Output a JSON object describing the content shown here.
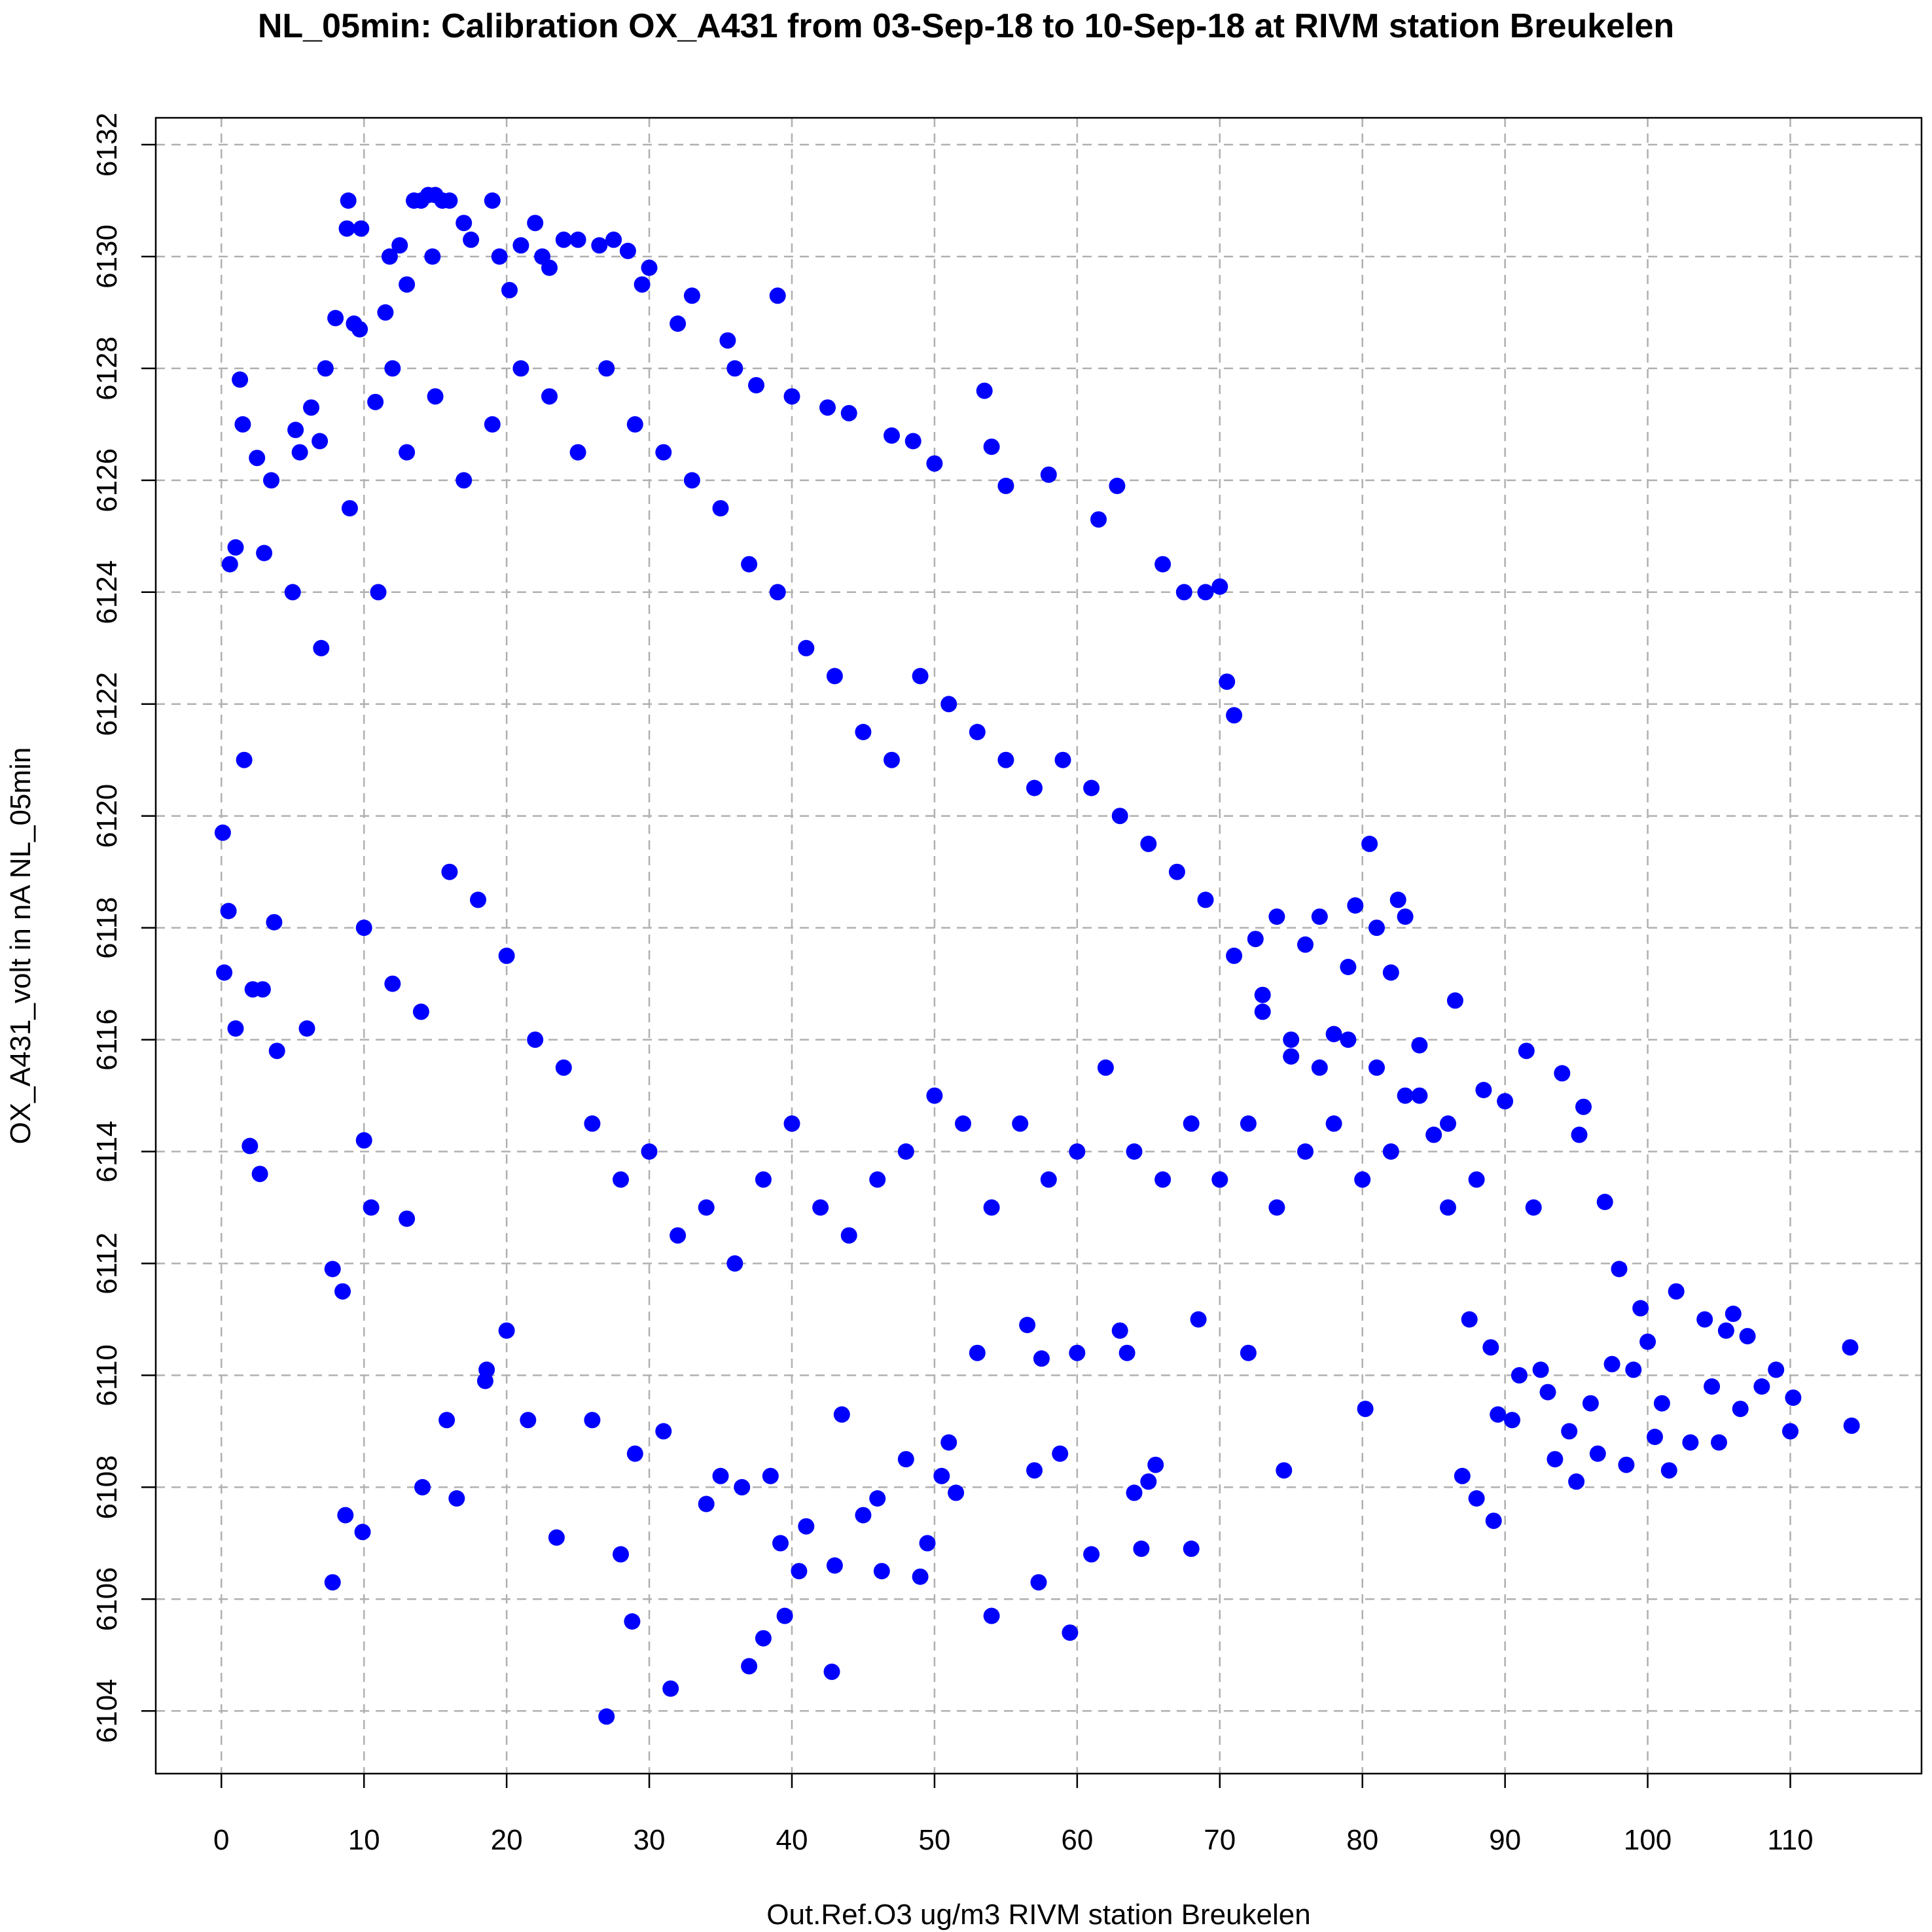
{
  "chart_data": {
    "type": "scatter",
    "title": "NL_05min: Calibration OX_A431 from 03-Sep-18 to 10-Sep-18 at RIVM station Breukelen",
    "xlabel": "Out.Ref.O3 ug/m3 RIVM station Breukelen",
    "ylabel": "OX_A431_volt in nA NL_05min",
    "xlim": [
      -4.6,
      119.2
    ],
    "ylim": [
      6102.88,
      6132.48
    ],
    "x_ticks": [
      "0",
      "10",
      "20",
      "30",
      "40",
      "50",
      "60",
      "70",
      "80",
      "90",
      "100",
      "110"
    ],
    "y_ticks": [
      "6104",
      "6106",
      "6108",
      "6110",
      "6112",
      "6114",
      "6116",
      "6118",
      "6120",
      "6122",
      "6124",
      "6126",
      "6128",
      "6130",
      "6132"
    ],
    "grid": true,
    "marker_color": "#0000FF",
    "series": [
      {
        "points": [
          [
            0.1,
            6119.7
          ],
          [
            0.2,
            6117.2
          ],
          [
            0.5,
            6118.3
          ],
          [
            0.6,
            6124.5
          ],
          [
            1.0,
            6116.2
          ],
          [
            1.0,
            6124.8
          ],
          [
            1.3,
            6127.8
          ],
          [
            1.5,
            6127.0
          ],
          [
            1.6,
            6121.0
          ],
          [
            2.0,
            6114.1
          ],
          [
            2.2,
            6116.9
          ],
          [
            2.5,
            6126.4
          ],
          [
            2.7,
            6113.6
          ],
          [
            2.9,
            6116.9
          ],
          [
            3.0,
            6124.7
          ],
          [
            3.5,
            6126.0
          ],
          [
            3.7,
            6118.1
          ],
          [
            3.9,
            6115.8
          ],
          [
            5.2,
            6126.9
          ],
          [
            5.5,
            6126.5
          ],
          [
            6.0,
            6116.2
          ],
          [
            6.3,
            6127.3
          ],
          [
            6.9,
            6126.7
          ],
          [
            7.3,
            6128.0
          ],
          [
            7.8,
            6111.9
          ],
          [
            7.8,
            6106.3
          ],
          [
            8.0,
            6128.9
          ],
          [
            8.5,
            6111.5
          ],
          [
            8.7,
            6107.5
          ],
          [
            8.8,
            6130.5
          ],
          [
            8.9,
            6131.0
          ],
          [
            9.3,
            6128.8
          ],
          [
            9.7,
            6128.7
          ],
          [
            9.8,
            6130.5
          ],
          [
            9.9,
            6107.2
          ],
          [
            10.0,
            6114.2
          ],
          [
            10.5,
            6113.0
          ],
          [
            10.8,
            6127.4
          ],
          [
            11.5,
            6129.0
          ],
          [
            11.8,
            6130.0
          ],
          [
            12.0,
            6128.0
          ],
          [
            12.5,
            6130.2
          ],
          [
            13.0,
            6129.5
          ],
          [
            13.0,
            6112.8
          ],
          [
            13.5,
            6131.0
          ],
          [
            14.0,
            6131.0
          ],
          [
            14.1,
            6108.0
          ],
          [
            14.5,
            6131.1
          ],
          [
            14.8,
            6130.0
          ],
          [
            15.0,
            6131.1
          ],
          [
            15.5,
            6131.0
          ],
          [
            15.8,
            6109.2
          ],
          [
            16.0,
            6131.0
          ],
          [
            16.5,
            6107.8
          ],
          [
            17.0,
            6130.6
          ],
          [
            17.5,
            6130.3
          ],
          [
            18.5,
            6109.9
          ],
          [
            18.6,
            6110.1
          ],
          [
            19.0,
            6131.0
          ],
          [
            19.5,
            6130.0
          ],
          [
            20.0,
            6110.8
          ],
          [
            20.2,
            6129.4
          ],
          [
            21.0,
            6130.2
          ],
          [
            21.5,
            6109.2
          ],
          [
            22.0,
            6130.6
          ],
          [
            22.5,
            6130.0
          ],
          [
            23.0,
            6129.8
          ],
          [
            23.5,
            6107.1
          ],
          [
            24.0,
            6130.3
          ],
          [
            25.0,
            6130.3
          ],
          [
            26.0,
            6109.2
          ],
          [
            26.5,
            6130.2
          ],
          [
            27.0,
            6103.9
          ],
          [
            27.5,
            6130.3
          ],
          [
            28.0,
            6106.8
          ],
          [
            28.5,
            6130.1
          ],
          [
            28.8,
            6105.6
          ],
          [
            29.0,
            6108.6
          ],
          [
            29.5,
            6129.5
          ],
          [
            30.0,
            6129.8
          ],
          [
            31.0,
            6109.0
          ],
          [
            31.5,
            6104.4
          ],
          [
            32.0,
            6128.8
          ],
          [
            33.0,
            6129.3
          ],
          [
            34.0,
            6107.7
          ],
          [
            35.0,
            6108.2
          ],
          [
            35.5,
            6128.5
          ],
          [
            36.0,
            6128.0
          ],
          [
            36.5,
            6108.0
          ],
          [
            37.0,
            6104.8
          ],
          [
            37.5,
            6127.7
          ],
          [
            38.0,
            6105.3
          ],
          [
            38.5,
            6108.2
          ],
          [
            39.0,
            6129.3
          ],
          [
            39.2,
            6107.0
          ],
          [
            39.5,
            6105.7
          ],
          [
            40.0,
            6127.5
          ],
          [
            40.5,
            6106.5
          ],
          [
            41.0,
            6107.3
          ],
          [
            42.5,
            6127.3
          ],
          [
            42.8,
            6104.7
          ],
          [
            43.0,
            6106.6
          ],
          [
            43.5,
            6109.3
          ],
          [
            44.0,
            6127.2
          ],
          [
            45.0,
            6107.5
          ],
          [
            46.0,
            6107.8
          ],
          [
            46.3,
            6106.5
          ],
          [
            47.0,
            6126.8
          ],
          [
            48.0,
            6108.5
          ],
          [
            48.5,
            6126.7
          ],
          [
            49.0,
            6106.4
          ],
          [
            49.5,
            6107.0
          ],
          [
            50.0,
            6126.3
          ],
          [
            50.5,
            6108.2
          ],
          [
            51.0,
            6108.8
          ],
          [
            51.5,
            6107.9
          ],
          [
            53.0,
            6110.4
          ],
          [
            53.5,
            6127.6
          ],
          [
            54.0,
            6105.7
          ],
          [
            54.0,
            6126.6
          ],
          [
            55.0,
            6125.9
          ],
          [
            56.5,
            6110.9
          ],
          [
            57.0,
            6108.3
          ],
          [
            57.3,
            6106.3
          ],
          [
            57.5,
            6110.3
          ],
          [
            58.0,
            6126.1
          ],
          [
            58.8,
            6108.6
          ],
          [
            59.5,
            6105.4
          ],
          [
            60.0,
            6110.4
          ],
          [
            61.0,
            6106.8
          ],
          [
            61.5,
            6125.3
          ],
          [
            62.8,
            6125.9
          ],
          [
            63.0,
            6110.8
          ],
          [
            63.5,
            6110.4
          ],
          [
            64.0,
            6107.9
          ],
          [
            64.5,
            6106.9
          ],
          [
            65.0,
            6108.1
          ],
          [
            65.5,
            6108.4
          ],
          [
            66.0,
            6124.5
          ],
          [
            67.5,
            6124.0
          ],
          [
            68.0,
            6106.9
          ],
          [
            68.5,
            6111.0
          ],
          [
            69.0,
            6124.0
          ],
          [
            70.0,
            6124.1
          ],
          [
            70.5,
            6122.4
          ],
          [
            71.0,
            6121.8
          ],
          [
            72.0,
            6110.4
          ],
          [
            72.5,
            6117.8
          ],
          [
            73.0,
            6116.8
          ],
          [
            74.0,
            6118.2
          ],
          [
            74.5,
            6108.3
          ],
          [
            75.0,
            6115.7
          ],
          [
            76.0,
            6117.7
          ],
          [
            77.0,
            6118.2
          ],
          [
            78.0,
            6116.1
          ],
          [
            79.0,
            6117.3
          ],
          [
            79.5,
            6118.4
          ],
          [
            80.2,
            6109.4
          ],
          [
            80.5,
            6119.5
          ],
          [
            81.0,
            6118.0
          ],
          [
            82.0,
            6117.2
          ],
          [
            82.5,
            6118.5
          ],
          [
            83.0,
            6118.2
          ],
          [
            84.0,
            6115.9
          ],
          [
            85.0,
            6114.3
          ],
          [
            86.0,
            6114.5
          ],
          [
            86.5,
            6116.7
          ],
          [
            87.0,
            6108.2
          ],
          [
            87.5,
            6111.0
          ],
          [
            88.0,
            6107.8
          ],
          [
            88.5,
            6115.1
          ],
          [
            89.0,
            6110.5
          ],
          [
            89.2,
            6107.4
          ],
          [
            89.5,
            6109.3
          ],
          [
            90.0,
            6114.9
          ],
          [
            90.5,
            6109.2
          ],
          [
            91.0,
            6110.0
          ],
          [
            91.5,
            6115.8
          ],
          [
            92.0,
            6113.0
          ],
          [
            92.5,
            6110.1
          ],
          [
            93.0,
            6109.7
          ],
          [
            93.5,
            6108.5
          ],
          [
            94.0,
            6115.4
          ],
          [
            94.5,
            6109.0
          ],
          [
            95.0,
            6108.1
          ],
          [
            95.2,
            6114.3
          ],
          [
            95.5,
            6114.8
          ],
          [
            96.0,
            6109.5
          ],
          [
            96.5,
            6108.6
          ],
          [
            97.0,
            6113.1
          ],
          [
            97.5,
            6110.2
          ],
          [
            98.0,
            6111.9
          ],
          [
            98.5,
            6108.4
          ],
          [
            99.0,
            6110.1
          ],
          [
            99.5,
            6111.2
          ],
          [
            100.0,
            6110.6
          ],
          [
            100.5,
            6108.9
          ],
          [
            101.0,
            6109.5
          ],
          [
            101.5,
            6108.3
          ],
          [
            102.0,
            6111.5
          ],
          [
            103.0,
            6108.8
          ],
          [
            104.0,
            6111.0
          ],
          [
            104.5,
            6109.8
          ],
          [
            105.0,
            6108.8
          ],
          [
            105.5,
            6110.8
          ],
          [
            106.0,
            6111.1
          ],
          [
            106.5,
            6109.4
          ],
          [
            107.0,
            6110.7
          ],
          [
            108.0,
            6109.8
          ],
          [
            109.0,
            6110.1
          ],
          [
            110.0,
            6109.0
          ],
          [
            110.2,
            6109.6
          ],
          [
            114.2,
            6110.5
          ],
          [
            114.3,
            6109.1
          ],
          [
            5.0,
            6124.0
          ],
          [
            7.0,
            6123.0
          ],
          [
            9.0,
            6125.5
          ],
          [
            11.0,
            6124.0
          ],
          [
            13.0,
            6126.5
          ],
          [
            15.0,
            6127.5
          ],
          [
            17.0,
            6126.0
          ],
          [
            19.0,
            6127.0
          ],
          [
            21.0,
            6128.0
          ],
          [
            23.0,
            6127.5
          ],
          [
            25.0,
            6126.5
          ],
          [
            27.0,
            6128.0
          ],
          [
            29.0,
            6127.0
          ],
          [
            31.0,
            6126.5
          ],
          [
            33.0,
            6126.0
          ],
          [
            35.0,
            6125.5
          ],
          [
            37.0,
            6124.5
          ],
          [
            39.0,
            6124.0
          ],
          [
            41.0,
            6123.0
          ],
          [
            43.0,
            6122.5
          ],
          [
            45.0,
            6121.5
          ],
          [
            47.0,
            6121.0
          ],
          [
            49.0,
            6122.5
          ],
          [
            51.0,
            6122.0
          ],
          [
            53.0,
            6121.5
          ],
          [
            55.0,
            6121.0
          ],
          [
            57.0,
            6120.5
          ],
          [
            59.0,
            6121.0
          ],
          [
            61.0,
            6120.5
          ],
          [
            63.0,
            6120.0
          ],
          [
            65.0,
            6119.5
          ],
          [
            67.0,
            6119.0
          ],
          [
            69.0,
            6118.5
          ],
          [
            71.0,
            6117.5
          ],
          [
            73.0,
            6116.5
          ],
          [
            75.0,
            6116.0
          ],
          [
            77.0,
            6115.5
          ],
          [
            79.0,
            6116.0
          ],
          [
            81.0,
            6115.5
          ],
          [
            83.0,
            6115.0
          ],
          [
            10.0,
            6118.0
          ],
          [
            12.0,
            6117.0
          ],
          [
            14.0,
            6116.5
          ],
          [
            16.0,
            6119.0
          ],
          [
            18.0,
            6118.5
          ],
          [
            20.0,
            6117.5
          ],
          [
            22.0,
            6116.0
          ],
          [
            24.0,
            6115.5
          ],
          [
            26.0,
            6114.5
          ],
          [
            28.0,
            6113.5
          ],
          [
            30.0,
            6114.0
          ],
          [
            32.0,
            6112.5
          ],
          [
            34.0,
            6113.0
          ],
          [
            36.0,
            6112.0
          ],
          [
            38.0,
            6113.5
          ],
          [
            40.0,
            6114.5
          ],
          [
            42.0,
            6113.0
          ],
          [
            44.0,
            6112.5
          ],
          [
            46.0,
            6113.5
          ],
          [
            48.0,
            6114.0
          ],
          [
            50.0,
            6115.0
          ],
          [
            52.0,
            6114.5
          ],
          [
            54.0,
            6113.0
          ],
          [
            56.0,
            6114.5
          ],
          [
            58.0,
            6113.5
          ],
          [
            60.0,
            6114.0
          ],
          [
            62.0,
            6115.5
          ],
          [
            64.0,
            6114.0
          ],
          [
            66.0,
            6113.5
          ],
          [
            68.0,
            6114.5
          ],
          [
            70.0,
            6113.5
          ],
          [
            72.0,
            6114.5
          ],
          [
            74.0,
            6113.0
          ],
          [
            76.0,
            6114.0
          ],
          [
            78.0,
            6114.5
          ],
          [
            80.0,
            6113.5
          ],
          [
            82.0,
            6114.0
          ],
          [
            84.0,
            6115.0
          ],
          [
            86.0,
            6113.0
          ],
          [
            88.0,
            6113.5
          ]
        ]
      }
    ]
  }
}
